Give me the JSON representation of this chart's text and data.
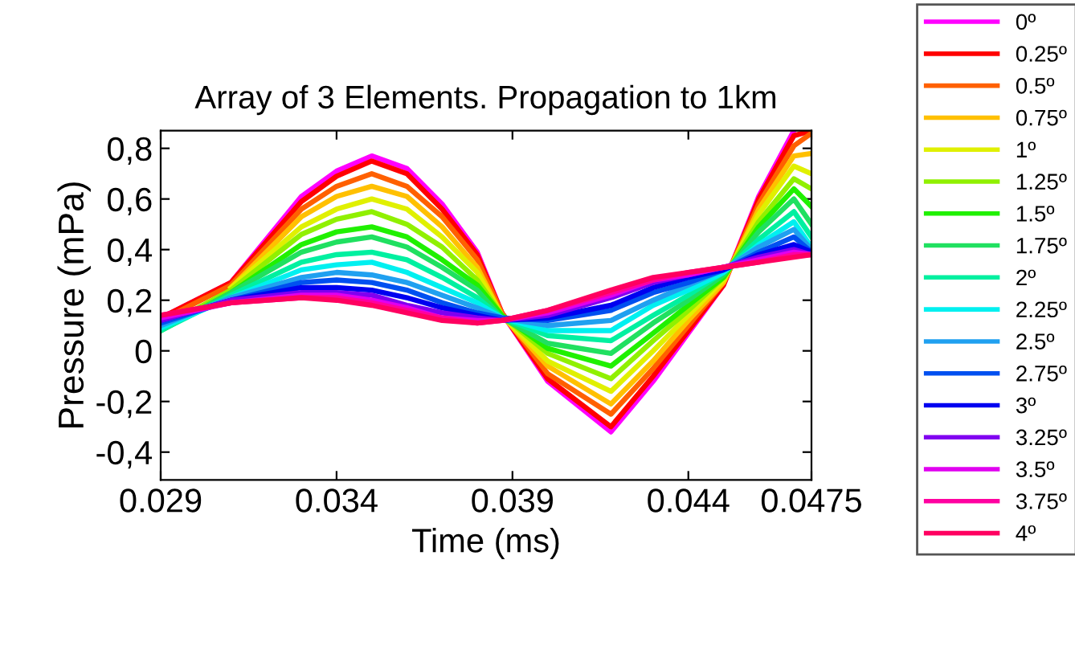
{
  "chart_data": {
    "type": "line",
    "title": "Array of 3 Elements. Propagation to 1km",
    "xlabel": "Time (ms)",
    "ylabel": "Pressure (mPa)",
    "x": [
      0.029,
      0.031,
      0.033,
      0.034,
      0.035,
      0.036,
      0.037,
      0.038,
      0.0387,
      0.04,
      0.0418,
      0.043,
      0.044,
      0.045,
      0.046,
      0.047,
      0.0475
    ],
    "xlim": [
      0.029,
      0.0475
    ],
    "xticks": [
      0.029,
      0.034,
      0.039,
      0.044,
      0.0475
    ],
    "ylim": [
      -0.51,
      0.87
    ],
    "yticks": [
      {
        "value": -0.4,
        "label": "-0,4"
      },
      {
        "value": -0.2,
        "label": "-0,2"
      },
      0,
      {
        "value": 0.2,
        "label": "0,2"
      },
      {
        "value": 0.4,
        "label": "0,4"
      },
      {
        "value": 0.6,
        "label": "0,6"
      },
      {
        "value": 0.8,
        "label": "0,8"
      }
    ],
    "grid": false,
    "legend": "right",
    "marker": "none",
    "line_style": "solid",
    "series": [
      {
        "name": "0º",
        "color": "#ff00ff",
        "values": [
          0.13,
          0.27,
          0.61,
          0.71,
          0.77,
          0.72,
          0.58,
          0.39,
          0.15,
          -0.12,
          -0.32,
          -0.12,
          0.07,
          0.26,
          0.61,
          0.87,
          null
        ]
      },
      {
        "name": "0.25º",
        "color": "#ff0000",
        "values": [
          0.13,
          0.27,
          0.59,
          0.69,
          0.75,
          0.7,
          0.56,
          0.38,
          0.15,
          -0.11,
          -0.3,
          -0.1,
          0.08,
          0.26,
          0.6,
          0.85,
          0.87
        ]
      },
      {
        "name": "0.5º",
        "color": "#ff6000",
        "values": [
          0.12,
          0.26,
          0.56,
          0.65,
          0.7,
          0.65,
          0.53,
          0.36,
          0.15,
          -0.09,
          -0.25,
          -0.07,
          0.1,
          0.27,
          0.58,
          0.81,
          0.86
        ]
      },
      {
        "name": "0.75º",
        "color": "#ffc000",
        "values": [
          null,
          0.25,
          0.53,
          0.61,
          0.65,
          0.61,
          0.49,
          0.33,
          0.14,
          -0.06,
          -0.21,
          -0.04,
          0.12,
          0.27,
          0.56,
          0.77,
          0.78
        ]
      },
      {
        "name": "1º",
        "color": "#e0f000",
        "values": [
          null,
          0.25,
          0.49,
          0.56,
          0.6,
          0.56,
          0.45,
          0.31,
          0.14,
          -0.04,
          -0.16,
          0.0,
          0.14,
          0.28,
          0.54,
          0.73,
          0.7
        ]
      },
      {
        "name": "1.25º",
        "color": "#90f000",
        "values": [
          0.09,
          0.24,
          0.46,
          0.52,
          0.55,
          0.5,
          0.41,
          0.28,
          0.14,
          -0.01,
          -0.11,
          0.04,
          0.16,
          0.29,
          0.51,
          0.68,
          0.64
        ]
      },
      {
        "name": "1.5º",
        "color": "#20f000",
        "values": [
          0.08,
          0.23,
          0.42,
          0.47,
          0.49,
          0.45,
          0.36,
          0.26,
          0.14,
          0.01,
          -0.06,
          0.07,
          0.18,
          0.29,
          0.49,
          0.64,
          0.57
        ]
      },
      {
        "name": "1.75º",
        "color": "#20e060",
        "values": [
          0.08,
          0.23,
          0.39,
          0.43,
          0.45,
          0.41,
          0.33,
          0.24,
          0.13,
          0.03,
          -0.01,
          0.11,
          0.2,
          0.3,
          0.47,
          0.6,
          0.5
        ]
      },
      {
        "name": "2º",
        "color": "#00f0a0",
        "values": [
          0.08,
          0.22,
          0.35,
          0.38,
          0.39,
          0.36,
          0.29,
          0.21,
          0.13,
          0.06,
          0.04,
          0.14,
          0.22,
          0.31,
          0.44,
          0.55,
          0.45
        ]
      },
      {
        "name": "2.25º",
        "color": "#00f0f0",
        "values": [
          0.09,
          0.21,
          0.32,
          0.34,
          0.35,
          0.31,
          0.25,
          0.19,
          0.13,
          0.08,
          0.08,
          0.18,
          0.24,
          0.31,
          0.42,
          0.51,
          0.41
        ]
      },
      {
        "name": "2.5º",
        "color": "#20a0f0",
        "values": [
          0.1,
          0.21,
          0.29,
          0.31,
          0.3,
          0.27,
          0.22,
          0.17,
          0.13,
          0.1,
          0.12,
          0.2,
          0.26,
          0.32,
          0.41,
          0.48,
          0.4
        ]
      },
      {
        "name": "2.75º",
        "color": "#0050f0",
        "values": [
          0.11,
          0.2,
          0.27,
          0.28,
          0.27,
          0.24,
          0.19,
          0.15,
          0.13,
          0.12,
          0.16,
          0.23,
          0.27,
          0.32,
          0.39,
          0.45,
          0.39
        ]
      },
      {
        "name": "3º",
        "color": "#0000f0",
        "values": [
          0.12,
          0.2,
          0.25,
          0.25,
          0.24,
          0.21,
          0.17,
          0.14,
          0.12,
          0.13,
          0.18,
          0.25,
          0.29,
          0.32,
          0.38,
          0.42,
          0.39
        ]
      },
      {
        "name": "3.25º",
        "color": "#8000f0",
        "values": [
          0.12,
          0.2,
          0.23,
          0.23,
          0.22,
          0.18,
          0.15,
          0.13,
          0.12,
          0.14,
          0.21,
          0.27,
          0.3,
          0.33,
          0.37,
          0.4,
          0.38
        ]
      },
      {
        "name": "3.5º",
        "color": "#e000f0",
        "values": [
          0.13,
          0.19,
          0.22,
          0.22,
          0.2,
          0.17,
          0.13,
          0.12,
          0.12,
          0.15,
          0.22,
          0.28,
          0.3,
          0.33,
          0.36,
          0.39,
          0.38
        ]
      },
      {
        "name": "3.75º",
        "color": "#ff00a0",
        "values": [
          0.14,
          0.19,
          0.21,
          0.21,
          0.19,
          0.16,
          0.13,
          0.11,
          0.12,
          0.16,
          0.23,
          0.28,
          0.31,
          0.33,
          0.35,
          0.38,
          0.38
        ]
      },
      {
        "name": "4º",
        "color": "#ff0060",
        "values": [
          0.14,
          0.19,
          0.21,
          0.2,
          0.18,
          0.15,
          0.12,
          0.11,
          0.12,
          0.16,
          0.24,
          0.29,
          0.31,
          0.33,
          0.35,
          0.37,
          0.38
        ]
      }
    ]
  }
}
